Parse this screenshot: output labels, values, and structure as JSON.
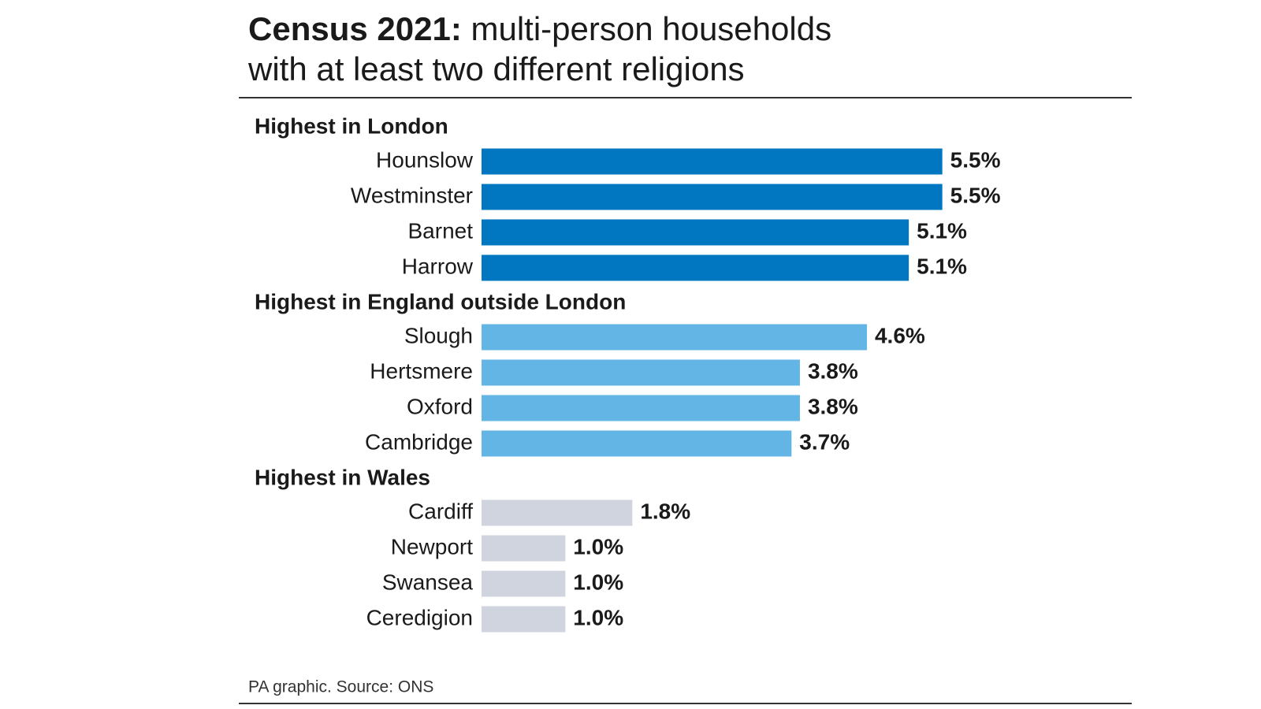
{
  "chart_data": {
    "type": "bar",
    "title_lead": "Census 2021:",
    "title_lines": [
      "multi-person households",
      "with at least two different religions"
    ],
    "groups": [
      {
        "name": "Highest in London",
        "color": "#0077c0",
        "categories": [
          "Hounslow",
          "Westminster",
          "Barnet",
          "Harrow"
        ],
        "values": [
          5.5,
          5.5,
          5.1,
          5.1
        ],
        "value_labels": [
          "5.5%",
          "5.5%",
          "5.1%",
          "5.1%"
        ]
      },
      {
        "name": "Highest in England outside London",
        "color": "#62b5e5",
        "categories": [
          "Slough",
          "Hertsmere",
          "Oxford",
          "Cambridge"
        ],
        "values": [
          4.6,
          3.8,
          3.8,
          3.7
        ],
        "value_labels": [
          "4.6%",
          "3.8%",
          "3.8%",
          "3.7%"
        ]
      },
      {
        "name": "Highest in Wales",
        "color": "#cfd4df",
        "categories": [
          "Cardiff",
          "Newport",
          "Swansea",
          "Ceredigion"
        ],
        "values": [
          1.8,
          1.0,
          1.0,
          1.0
        ],
        "value_labels": [
          "1.8%",
          "1.0%",
          "1.0%",
          "1.0%"
        ]
      }
    ],
    "source": "PA graphic. Source: ONS"
  }
}
